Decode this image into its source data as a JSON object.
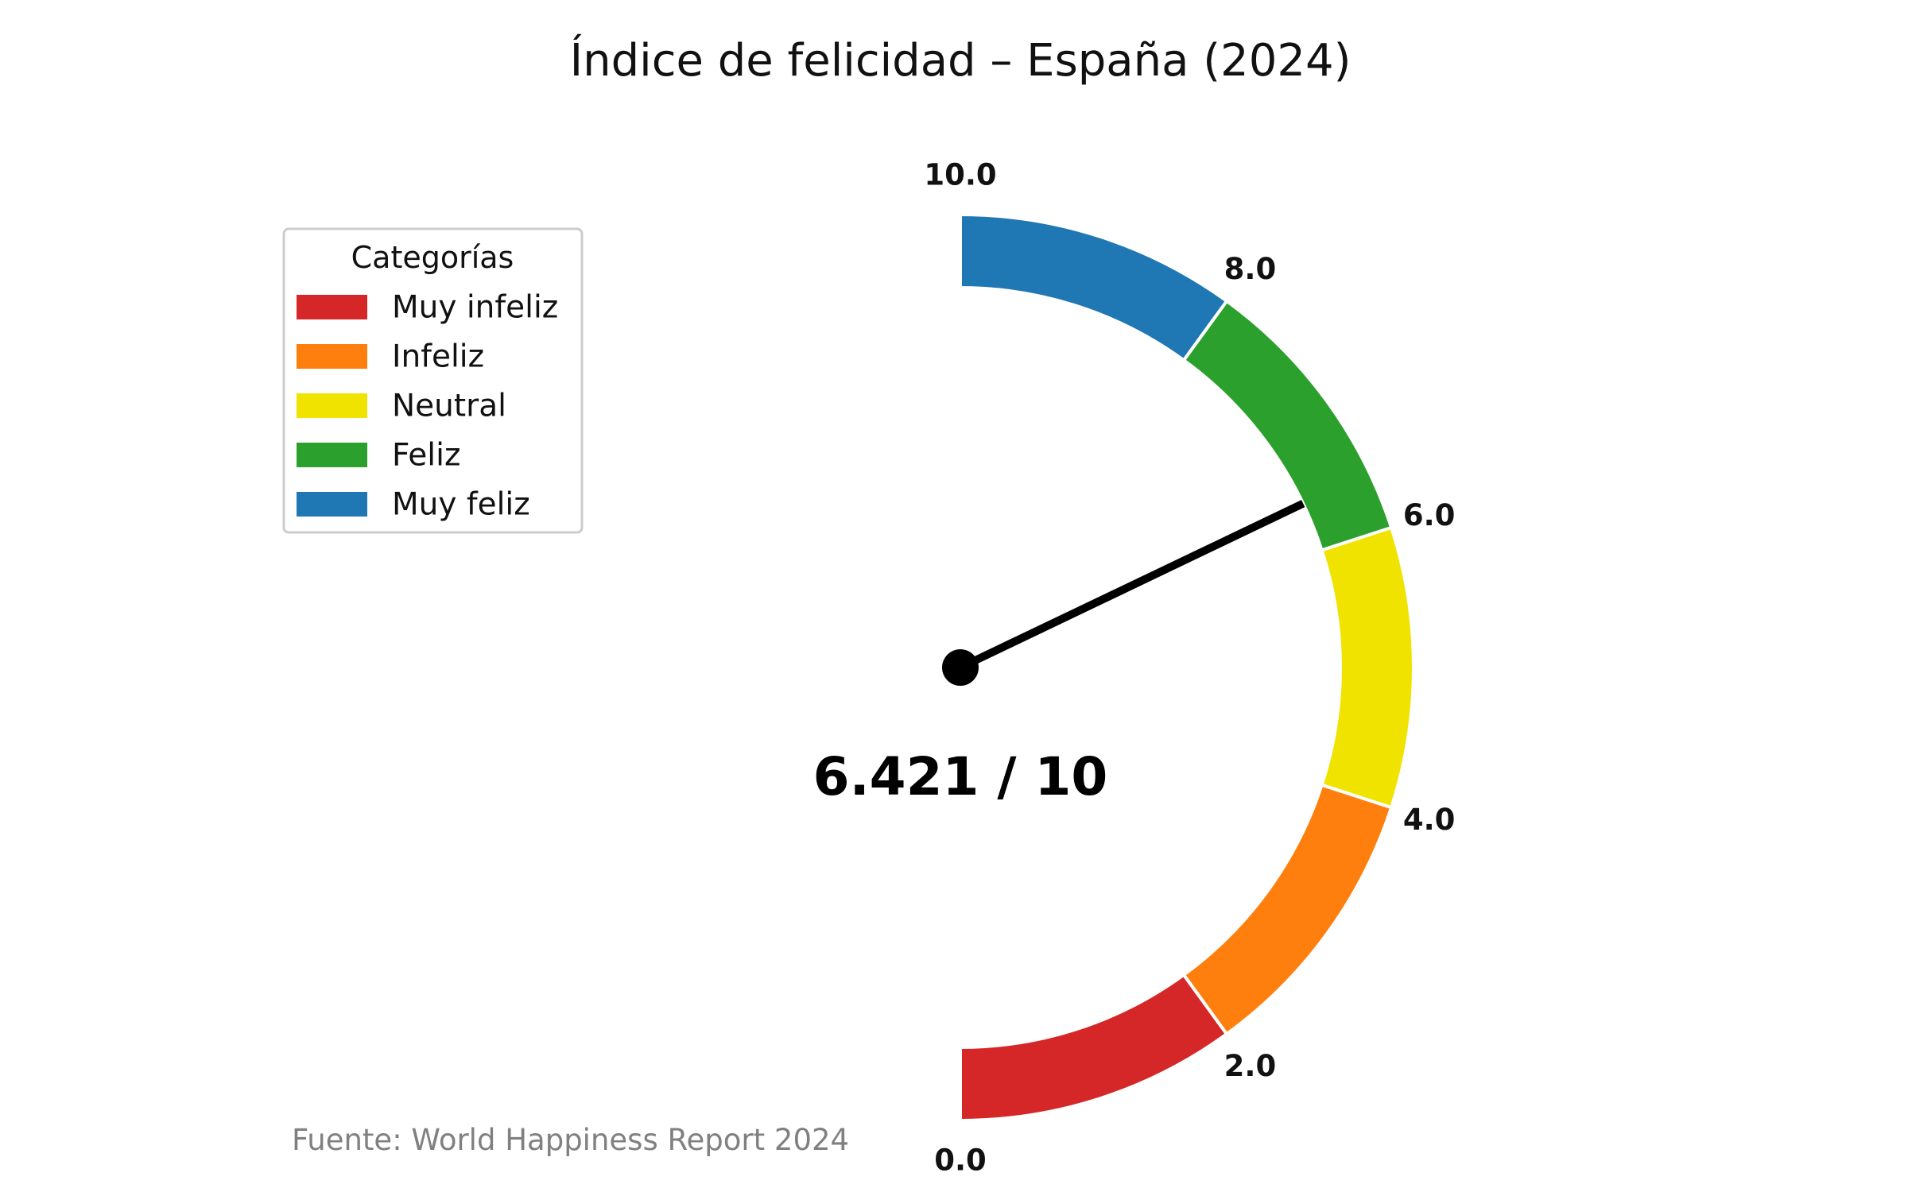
{
  "chart_data": {
    "type": "gauge",
    "title": "Índice de felicidad – España (2024)",
    "min": 0,
    "max": 10,
    "value": 6.421,
    "value_label": "6.421 / 10",
    "tick_values": [
      0,
      2,
      4,
      6,
      8,
      10
    ],
    "tick_labels": [
      "0.0",
      "2.0",
      "4.0",
      "6.0",
      "8.0",
      "10.0"
    ],
    "bands": [
      {
        "name": "Muy infeliz",
        "from": 0,
        "to": 2,
        "color": "#d62728"
      },
      {
        "name": "Infeliz",
        "from": 2,
        "to": 4,
        "color": "#ff7f0e"
      },
      {
        "name": "Neutral",
        "from": 4,
        "to": 6,
        "color": "#f0e300"
      },
      {
        "name": "Feliz",
        "from": 6,
        "to": 8,
        "color": "#2ca02c"
      },
      {
        "name": "Muy feliz",
        "from": 8,
        "to": 10,
        "color": "#1f77b4"
      }
    ],
    "legend": {
      "title": "Categorías",
      "placement": "top-left"
    },
    "source": "Fuente: World Happiness Report 2024"
  }
}
